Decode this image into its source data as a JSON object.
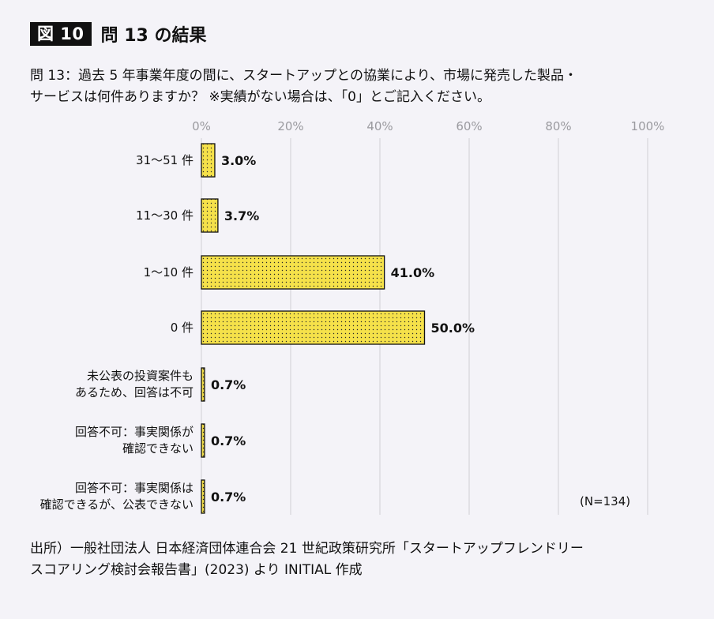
{
  "figure": {
    "badge": "図 10",
    "title": "問 13 の結果"
  },
  "question": {
    "line1": "問 13：過去 5 年事業年度の間に、スタートアップとの協業により、市場に発売した製品・",
    "line2": "サービスは何件ありますか？ ※実績がない場合は、「0」とご記入ください。"
  },
  "chart_data": {
    "type": "bar",
    "orientation": "horizontal",
    "title": "",
    "xlabel": "",
    "ylabel": "",
    "xlim": [
      0,
      100
    ],
    "grid": true,
    "ticks": [
      "0%",
      "20%",
      "40%",
      "60%",
      "80%",
      "100%"
    ],
    "categories": [
      "31〜51 件",
      "11〜30 件",
      "1〜10 件",
      "0 件",
      "未公表の投資案件も\nあるため、回答は不可",
      "回答不可：事実関係が\n確認できない",
      "回答不可：事実関係は\n確認できるが、公表できない"
    ],
    "values": [
      3.0,
      3.7,
      41.0,
      50.0,
      0.7,
      0.7,
      0.7
    ],
    "value_labels": [
      "3.0%",
      "3.7%",
      "41.0%",
      "50.0%",
      "0.7%",
      "0.7%",
      "0.7%"
    ],
    "bar_color": "#f5e14a",
    "annotation": "(N=134)"
  },
  "source": {
    "line1": "出所）一般社団法人 日本経済団体連合会 21 世紀政策研究所「スタートアップフレンドリー",
    "line2": "スコアリング検討会報告書」(2023) より INITIAL 作成"
  }
}
